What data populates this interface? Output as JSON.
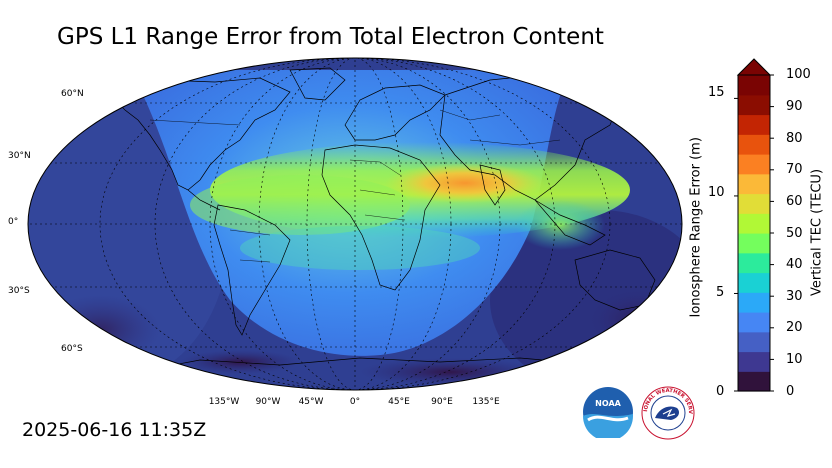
{
  "title": "GPS L1 Range Error from Total Electron Content",
  "timestamp": "2025-06-16 11:35Z",
  "latitude_labels": [
    "60°N",
    "30°N",
    "0°",
    "30°S",
    "60°S"
  ],
  "longitude_labels": [
    "135°W",
    "90°W",
    "45°W",
    "0°",
    "45°E",
    "90°E",
    "135°E"
  ],
  "colorbar": {
    "left_axis_label": "Ionosphere Range Error (m)",
    "right_axis_label": "Vertical TEC (TECU)",
    "left_ticks": [
      "15",
      "10",
      "5",
      "0"
    ],
    "right_ticks": [
      "100",
      "90",
      "80",
      "70",
      "60",
      "50",
      "40",
      "30",
      "20",
      "10",
      "0"
    ],
    "tec_range": [
      0,
      100
    ],
    "range_error_range_m": [
      0,
      16.2
    ],
    "extend": "max",
    "colors": [
      "#30123b",
      "#3e3891",
      "#4560c5",
      "#4686f4",
      "#2ba9f8",
      "#1ad1d4",
      "#2ceb9c",
      "#74fe5d",
      "#b1f836",
      "#e1dd37",
      "#fbb938",
      "#fb8022",
      "#e8530d",
      "#c32503",
      "#8b0d01",
      "#7a0403"
    ]
  },
  "map": {
    "projection": "Robinson",
    "grid": "dashed",
    "colors": {
      "night_background": "#2e3a8a",
      "deep_night": "#2a2268",
      "day_region": "#3d82ee",
      "equatorial_band": "#86ee5a",
      "peak": "#f8a33a",
      "coastline": "#000000"
    }
  },
  "logos": {
    "noaa": "NOAA",
    "nws": "NATIONAL WEATHER SERVICE"
  }
}
